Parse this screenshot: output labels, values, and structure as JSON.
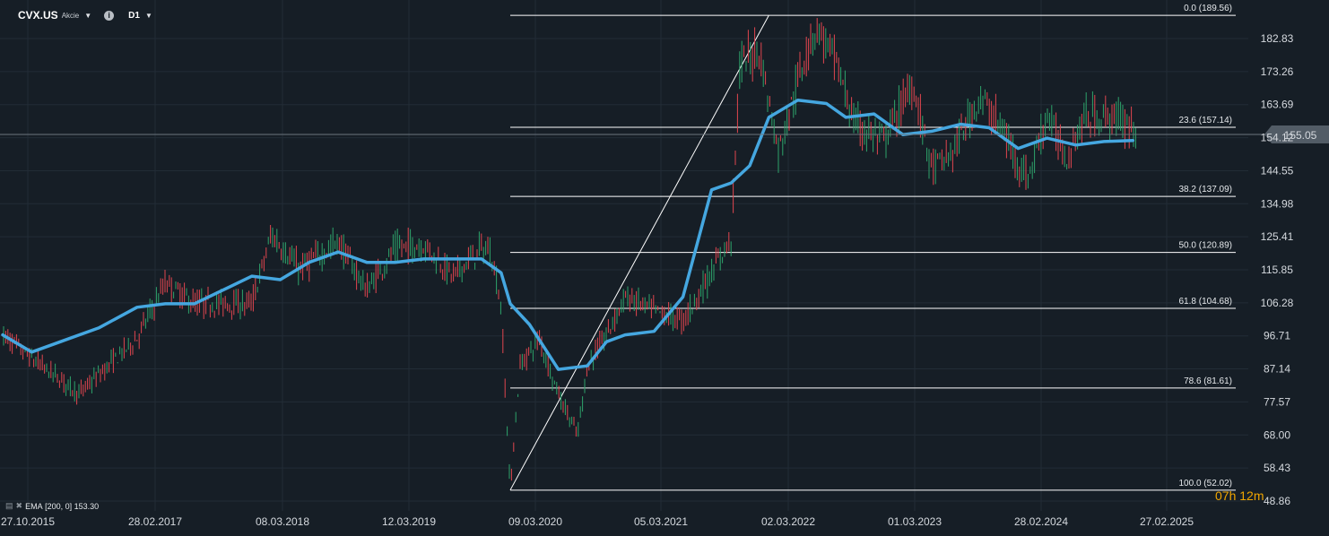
{
  "header": {
    "symbol": "CVX.US",
    "instrument_type": "Akcie",
    "timeframe": "D1"
  },
  "indicator_legend": {
    "label": "EMA",
    "params": "[200,  0]",
    "value": "153.30"
  },
  "countdown": "07h 12m",
  "colors": {
    "background": "#161e26",
    "grid": "#222c36",
    "up_candle": "#2ea36b",
    "down_candle": "#e0454f",
    "ema_line": "#45a7e0",
    "fib_line": "#ffffff",
    "price_tag": "#525c66",
    "countdown": "#f0a500"
  },
  "chart_data": {
    "type": "line",
    "title": "",
    "symbol": "CVX.US",
    "timeframe": "D1",
    "ylim": [
      46.0,
      194.0
    ],
    "y_ticks": [
      "182.83",
      "173.26",
      "163.69",
      "154.12",
      "144.55",
      "134.98",
      "125.41",
      "115.85",
      "106.28",
      "96.71",
      "87.14",
      "77.57",
      "68.00",
      "58.43",
      "48.86"
    ],
    "x_ticks": [
      "27.10.2015",
      "28.02.2017",
      "08.03.2018",
      "12.03.2019",
      "09.03.2020",
      "05.03.2021",
      "02.03.2022",
      "01.03.2023",
      "28.02.2024",
      "27.02.2025"
    ],
    "current_price": "155.05",
    "price_series": {
      "name": "",
      "x": [
        "2015-10",
        "2016-01",
        "2016-06",
        "2016-12",
        "2017-03",
        "2017-06",
        "2017-12",
        "2018-02",
        "2018-05",
        "2018-09",
        "2018-12",
        "2019-03",
        "2019-06",
        "2019-09",
        "2019-12",
        "2020-01",
        "2020-02",
        "2020-03",
        "2020-04",
        "2020-06",
        "2020-08",
        "2020-10",
        "2020-11",
        "2021-01",
        "2021-03",
        "2021-06",
        "2021-09",
        "2021-12",
        "2022-02",
        "2022-03",
        "2022-05",
        "2022-07",
        "2022-10",
        "2022-11",
        "2023-01",
        "2023-03",
        "2023-06",
        "2023-09",
        "2023-11",
        "2024-01",
        "2024-04",
        "2024-06",
        "2024-09",
        "2024-11",
        "2025-01",
        "2025-03",
        "2025-06",
        "2025-08"
      ],
      "values": [
        97,
        90,
        80,
        96,
        112,
        106,
        106,
        126,
        116,
        124,
        110,
        122,
        123,
        114,
        122,
        121,
        105,
        52,
        88,
        96,
        80,
        68,
        88,
        97,
        108,
        104,
        101,
        115,
        125,
        175,
        180,
        150,
        180,
        186,
        176,
        158,
        153,
        170,
        145,
        149,
        166,
        158,
        142,
        161,
        148,
        160,
        160,
        157
      ]
    },
    "ema_series": {
      "name": "EMA (200, 0)",
      "x": [
        "2015-10",
        "2016-01",
        "2016-04",
        "2016-08",
        "2016-12",
        "2017-03",
        "2017-06",
        "2017-12",
        "2018-03",
        "2018-06",
        "2018-09",
        "2018-12",
        "2019-03",
        "2019-06",
        "2019-09",
        "2019-12",
        "2020-02",
        "2020-03",
        "2020-05",
        "2020-08",
        "2020-11",
        "2021-01",
        "2021-03",
        "2021-06",
        "2021-09",
        "2021-12",
        "2022-02",
        "2022-04",
        "2022-06",
        "2022-09",
        "2022-12",
        "2023-02",
        "2023-05",
        "2023-08",
        "2023-11",
        "2024-02",
        "2024-05",
        "2024-08",
        "2024-11",
        "2025-02",
        "2025-05",
        "2025-08"
      ],
      "values": [
        97,
        92,
        95,
        99,
        105,
        106,
        106,
        114,
        113,
        118,
        121,
        118,
        118,
        119,
        119,
        119,
        115,
        106,
        100,
        87,
        88,
        95,
        97,
        98,
        108,
        139,
        141,
        146,
        160,
        165,
        164,
        160,
        161,
        155,
        156,
        158,
        157,
        151,
        154,
        152,
        153,
        153.3
      ]
    },
    "fib_levels": [
      {
        "ratio": "0.0",
        "price": 189.56,
        "label": "0.0 (189.56)"
      },
      {
        "ratio": "23.6",
        "price": 157.14,
        "label": "23.6 (157.14)"
      },
      {
        "ratio": "38.2",
        "price": 137.09,
        "label": "38.2 (137.09)"
      },
      {
        "ratio": "50.0",
        "price": 120.89,
        "label": "50.0 (120.89)"
      },
      {
        "ratio": "61.8",
        "price": 104.68,
        "label": "61.8 (104.68)"
      },
      {
        "ratio": "78.6",
        "price": 81.61,
        "label": "78.6 (81.61)"
      },
      {
        "ratio": "100.0",
        "price": 52.02,
        "label": "100.0 (52.02)"
      }
    ],
    "trend_line": {
      "from": {
        "x": "2020-03",
        "y": 52.02
      },
      "to": {
        "x": "2022-06",
        "y": 189.56
      }
    },
    "grid": true,
    "legend_position": "bottom-left"
  }
}
